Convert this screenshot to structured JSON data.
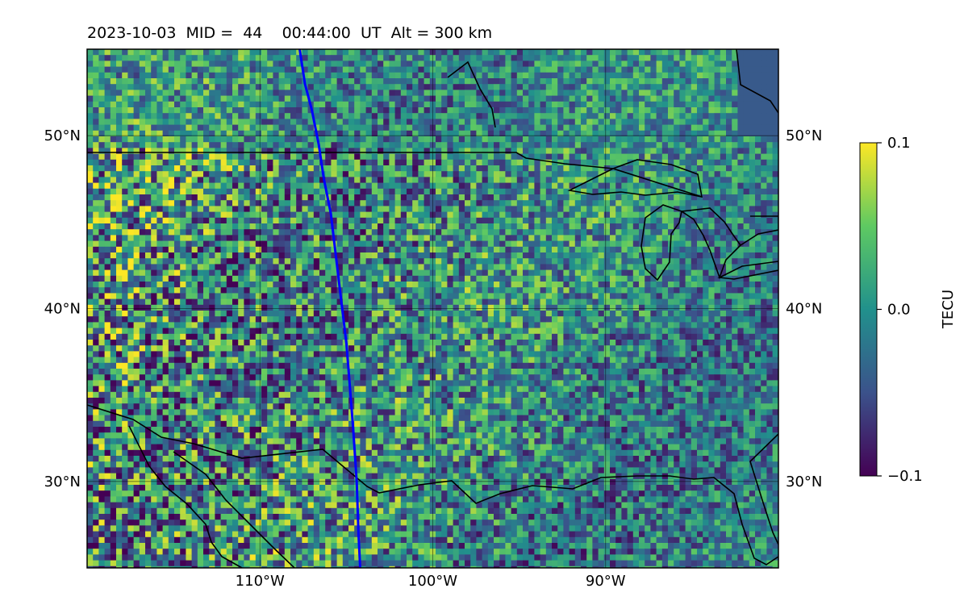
{
  "title": {
    "date": "2023-10-03",
    "mid_label": "MID =",
    "mid": "44",
    "time": "00:44:00",
    "time_unit": "UT",
    "alt_label": "Alt = 300 km"
  },
  "map": {
    "lon_range": [
      -120,
      -80
    ],
    "lat_range": [
      25,
      55
    ],
    "lon_ticks": [
      {
        "value": -110,
        "label": "110°W"
      },
      {
        "value": -100,
        "label": "100°W"
      },
      {
        "value": -90,
        "label": "90°W"
      }
    ],
    "lat_ticks": [
      {
        "value": 50,
        "label": "50°N"
      },
      {
        "value": 40,
        "label": "40°N"
      },
      {
        "value": 30,
        "label": "30°N"
      }
    ],
    "grid": true,
    "field_description_colormap": "viridis",
    "track_color": "#0000ff",
    "track": [
      [
        -107.7,
        55
      ],
      [
        -107.4,
        53
      ],
      [
        -107.0,
        51.5
      ],
      [
        -106.6,
        49.5
      ],
      [
        -106.3,
        47.5
      ],
      [
        -105.9,
        45.5
      ],
      [
        -105.6,
        43.0
      ],
      [
        -105.3,
        40.5
      ],
      [
        -105.0,
        38.0
      ],
      [
        -104.8,
        35.5
      ],
      [
        -104.6,
        33.0
      ],
      [
        -104.4,
        30.0
      ],
      [
        -104.3,
        27.0
      ],
      [
        -104.2,
        25
      ]
    ]
  },
  "colorbar": {
    "label": "TECU",
    "min": -0.1,
    "max": 0.1,
    "ticks": [
      {
        "value": 0.1,
        "label": "0.1"
      },
      {
        "value": 0.0,
        "label": "0.0"
      },
      {
        "value": -0.1,
        "label": "−0.1"
      }
    ],
    "colors": [
      "#440154",
      "#3b528b",
      "#21918c",
      "#5ec962",
      "#fde725"
    ]
  }
}
